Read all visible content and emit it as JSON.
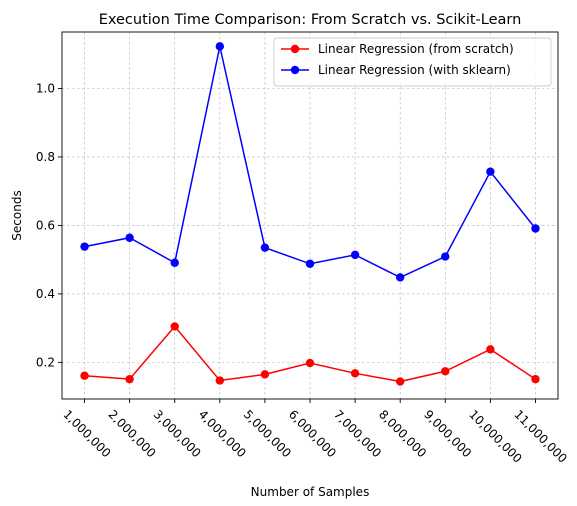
{
  "chart_data": {
    "type": "line",
    "title": "Execution Time Comparison: From Scratch vs. Scikit-Learn",
    "xlabel": "Number of Samples",
    "ylabel": "Seconds",
    "x": [
      1000000,
      2000000,
      3000000,
      4000000,
      5000000,
      6000000,
      7000000,
      8000000,
      9000000,
      10000000,
      11000000
    ],
    "x_tick_labels": [
      "1,000,000",
      "2,000,000",
      "3,000,000",
      "4,000,000",
      "5,000,000",
      "6,000,000",
      "7,000,000",
      "8,000,000",
      "9,000,000",
      "10,000,000",
      "11,000,000"
    ],
    "y_ticks": [
      0.2,
      0.4,
      0.6,
      0.8,
      1.0
    ],
    "y_tick_labels": [
      "0.2",
      "0.4",
      "0.6",
      "0.8",
      "1.0"
    ],
    "xlim": [
      500000,
      11500000
    ],
    "ylim": [
      0.093,
      1.165
    ],
    "grid": true,
    "legend_position": "top-right",
    "series": [
      {
        "name": "Linear Regression (from scratch)",
        "color": "#ff0000",
        "marker": "circle",
        "values": [
          0.161,
          0.151,
          0.305,
          0.147,
          0.165,
          0.198,
          0.168,
          0.144,
          0.174,
          0.238,
          0.151
        ]
      },
      {
        "name": "Linear Regression (with sklearn)",
        "color": "#0000ff",
        "marker": "circle",
        "values": [
          0.538,
          0.564,
          0.491,
          1.123,
          0.535,
          0.488,
          0.514,
          0.448,
          0.509,
          0.757,
          0.591
        ]
      }
    ]
  }
}
